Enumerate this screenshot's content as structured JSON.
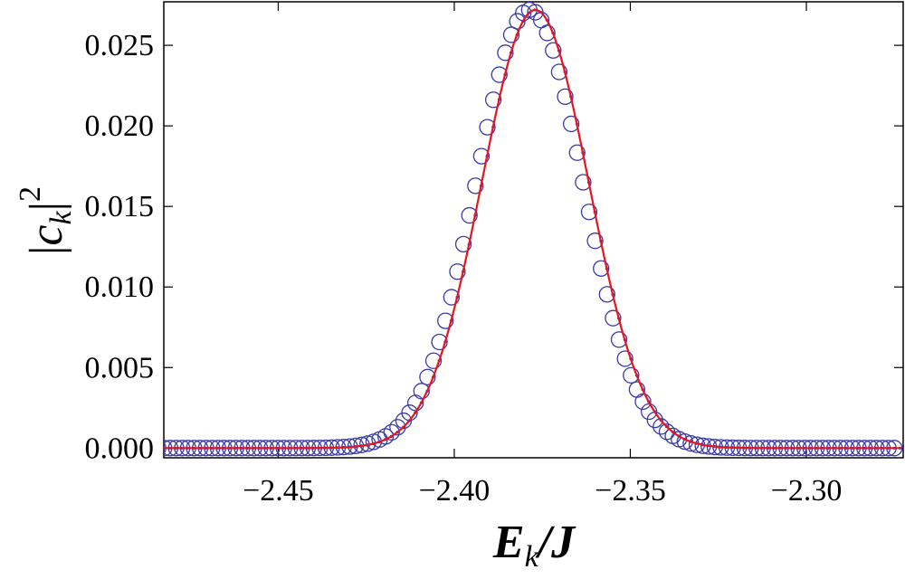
{
  "chart_data": {
    "type": "scatter",
    "xlabel": {
      "main": "E",
      "sub": "k",
      "rest": "/J"
    },
    "ylabel": {
      "pre": "|",
      "main": "c",
      "sub": "k",
      "post": "|",
      "sup": "2"
    },
    "xlim": [
      -2.4825,
      -2.2725
    ],
    "ylim": [
      -0.0006,
      0.0277
    ],
    "x_ticks": [
      -2.45,
      -2.4,
      -2.35,
      -2.3
    ],
    "x_tick_labels": [
      "−2.45",
      "−2.40",
      "−2.35",
      "−2.30"
    ],
    "y_ticks": [
      0.0,
      0.005,
      0.01,
      0.015,
      0.02,
      0.025
    ],
    "y_tick_labels": [
      "0.000",
      "0.005",
      "0.010",
      "0.015",
      "0.020",
      "0.025"
    ],
    "grid": false,
    "legend": "none",
    "distribution": {
      "shape": "gaussian",
      "center": -2.377,
      "sigma": 0.0152,
      "peak": 0.0272,
      "x_step": 0.0017
    },
    "series": [
      {
        "style": "open-circles",
        "color": "#3a3aa8",
        "x_offset": -0.0016
      },
      {
        "style": "dots",
        "color": "#3a3aa8",
        "x_offset": 0.0
      },
      {
        "style": "line",
        "color": "#e8141e",
        "x_offset": 0.0
      }
    ]
  }
}
